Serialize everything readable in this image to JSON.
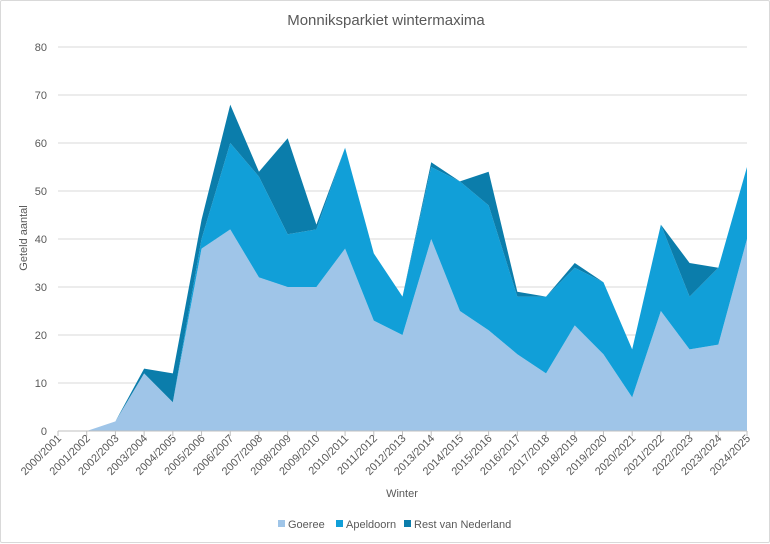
{
  "chart_data": {
    "type": "area",
    "stacked": true,
    "title": "Monniksparkiet wintermaxima",
    "xlabel": "Winter",
    "ylabel": "Geteld aantal",
    "ylim": [
      0,
      80
    ],
    "yticks": [
      0,
      10,
      20,
      30,
      40,
      50,
      60,
      70,
      80
    ],
    "grid": true,
    "legend_position": "bottom",
    "categories": [
      "2000/2001",
      "2001/2002",
      "2002/2003",
      "2003/2004",
      "2004/2005",
      "2005/2006",
      "2006/2007",
      "2007/2008",
      "2008/2009",
      "2009/2010",
      "2010/2011",
      "2011/2012",
      "2012/2013",
      "2013/2014",
      "2014/2015",
      "2015/2016",
      "2016/2017",
      "2017/2018",
      "2018/2019",
      "2019/2020",
      "2020/2021",
      "2021/2022",
      "2022/2023",
      "2023/2024",
      "2024/2025"
    ],
    "series": [
      {
        "name": "Goeree",
        "color": "#9fc5e8",
        "values": [
          0,
          0,
          2,
          12,
          6,
          38,
          42,
          32,
          30,
          30,
          38,
          23,
          20,
          40,
          25,
          21,
          16,
          12,
          22,
          16,
          7,
          25,
          17,
          18,
          40
        ]
      },
      {
        "name": "Apeldoorn",
        "color": "#119fd8",
        "values": [
          0,
          0,
          0,
          0,
          0,
          2,
          18,
          21,
          11,
          12,
          21,
          14,
          8,
          15,
          27,
          26,
          12,
          16,
          12,
          15,
          10,
          18,
          11,
          16,
          15
        ]
      },
      {
        "name": "Rest van Nederland",
        "color": "#0b7dab",
        "values": [
          0,
          0,
          0,
          1,
          6,
          4,
          8,
          1,
          20,
          1,
          0,
          0,
          0,
          1,
          0,
          7,
          1,
          0,
          1,
          0,
          0,
          0,
          7,
          0,
          0
        ]
      }
    ]
  }
}
